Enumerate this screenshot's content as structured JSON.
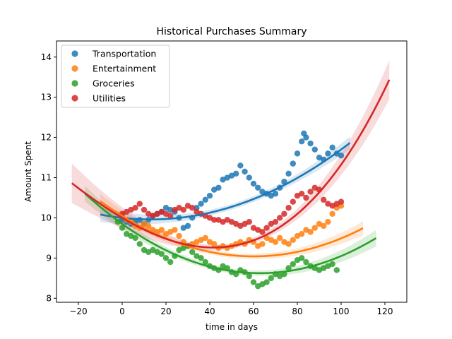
{
  "chart_data": {
    "type": "scatter",
    "title": "Historical Purchases Summary",
    "xlabel": "time in days",
    "ylabel": "Amount Spent",
    "xlim": [
      -30,
      130
    ],
    "ylim": [
      7.9,
      14.4
    ],
    "xticks": [
      -20,
      0,
      20,
      40,
      60,
      80,
      100,
      120
    ],
    "yticks": [
      8,
      9,
      10,
      11,
      12,
      13,
      14
    ],
    "grid": false,
    "legend_position": "top-left",
    "series": [
      {
        "name": "Transportation",
        "color": "#1f77b4",
        "points": [
          [
            0,
            9.95
          ],
          [
            2,
            9.9
          ],
          [
            4,
            9.85
          ],
          [
            6,
            9.9
          ],
          [
            8,
            9.95
          ],
          [
            10,
            9.85
          ],
          [
            12,
            9.95
          ],
          [
            14,
            10.05
          ],
          [
            16,
            10.1
          ],
          [
            18,
            10.15
          ],
          [
            20,
            10.25
          ],
          [
            22,
            10.2
          ],
          [
            24,
            10.15
          ],
          [
            26,
            10.0
          ],
          [
            28,
            9.75
          ],
          [
            30,
            9.8
          ],
          [
            32,
            10.0
          ],
          [
            34,
            10.25
          ],
          [
            36,
            10.35
          ],
          [
            38,
            10.45
          ],
          [
            40,
            10.55
          ],
          [
            42,
            10.7
          ],
          [
            44,
            10.75
          ],
          [
            46,
            10.95
          ],
          [
            48,
            11.0
          ],
          [
            50,
            11.05
          ],
          [
            52,
            11.1
          ],
          [
            54,
            11.3
          ],
          [
            56,
            11.15
          ],
          [
            58,
            11.0
          ],
          [
            60,
            10.85
          ],
          [
            62,
            10.75
          ],
          [
            64,
            10.65
          ],
          [
            66,
            10.6
          ],
          [
            68,
            10.55
          ],
          [
            70,
            10.6
          ],
          [
            72,
            10.75
          ],
          [
            74,
            10.9
          ],
          [
            76,
            11.1
          ],
          [
            78,
            11.35
          ],
          [
            80,
            11.6
          ],
          [
            82,
            11.9
          ],
          [
            83,
            12.1
          ],
          [
            84,
            12.0
          ],
          [
            86,
            11.85
          ],
          [
            88,
            11.7
          ],
          [
            90,
            11.5
          ],
          [
            92,
            11.45
          ],
          [
            94,
            11.6
          ],
          [
            96,
            11.75
          ],
          [
            98,
            11.6
          ],
          [
            100,
            11.55
          ]
        ],
        "fit": {
          "coef": [
            10.0,
            -0.006,
            0.00023
          ],
          "x_range": [
            -10,
            104
          ],
          "band": 0.07
        }
      },
      {
        "name": "Entertainment",
        "color": "#ff7f0e",
        "points": [
          [
            0,
            10.05
          ],
          [
            2,
            9.95
          ],
          [
            4,
            9.9
          ],
          [
            6,
            9.8
          ],
          [
            8,
            9.75
          ],
          [
            10,
            9.85
          ],
          [
            12,
            9.8
          ],
          [
            14,
            9.7
          ],
          [
            16,
            9.65
          ],
          [
            18,
            9.7
          ],
          [
            20,
            9.6
          ],
          [
            22,
            9.65
          ],
          [
            24,
            9.7
          ],
          [
            26,
            9.55
          ],
          [
            28,
            9.4
          ],
          [
            30,
            9.3
          ],
          [
            32,
            9.35
          ],
          [
            34,
            9.4
          ],
          [
            36,
            9.45
          ],
          [
            38,
            9.5
          ],
          [
            40,
            9.4
          ],
          [
            42,
            9.35
          ],
          [
            44,
            9.25
          ],
          [
            46,
            9.3
          ],
          [
            48,
            9.25
          ],
          [
            50,
            9.3
          ],
          [
            52,
            9.35
          ],
          [
            54,
            9.4
          ],
          [
            56,
            9.35
          ],
          [
            58,
            9.45
          ],
          [
            60,
            9.4
          ],
          [
            62,
            9.3
          ],
          [
            64,
            9.35
          ],
          [
            66,
            9.5
          ],
          [
            68,
            9.45
          ],
          [
            70,
            9.4
          ],
          [
            72,
            9.5
          ],
          [
            74,
            9.4
          ],
          [
            76,
            9.35
          ],
          [
            78,
            9.45
          ],
          [
            80,
            9.55
          ],
          [
            82,
            9.6
          ],
          [
            84,
            9.7
          ],
          [
            86,
            9.65
          ],
          [
            88,
            9.75
          ],
          [
            90,
            9.85
          ],
          [
            92,
            9.8
          ],
          [
            94,
            9.9
          ],
          [
            96,
            10.1
          ],
          [
            98,
            10.25
          ],
          [
            100,
            10.3
          ]
        ],
        "fit": {
          "coef": [
            10.05,
            -0.0336,
            0.00028
          ],
          "x_range": [
            -10,
            110
          ],
          "band": 0.06
        }
      },
      {
        "name": "Groceries",
        "color": "#2ca02c",
        "points": [
          [
            -2,
            9.9
          ],
          [
            0,
            9.75
          ],
          [
            2,
            9.6
          ],
          [
            4,
            9.55
          ],
          [
            6,
            9.5
          ],
          [
            8,
            9.35
          ],
          [
            10,
            9.2
          ],
          [
            12,
            9.15
          ],
          [
            14,
            9.2
          ],
          [
            16,
            9.15
          ],
          [
            18,
            9.1
          ],
          [
            20,
            9.0
          ],
          [
            22,
            8.9
          ],
          [
            24,
            9.05
          ],
          [
            26,
            9.2
          ],
          [
            28,
            9.25
          ],
          [
            30,
            9.3
          ],
          [
            32,
            9.15
          ],
          [
            34,
            9.05
          ],
          [
            36,
            9.0
          ],
          [
            38,
            8.9
          ],
          [
            40,
            8.8
          ],
          [
            42,
            8.75
          ],
          [
            44,
            8.7
          ],
          [
            46,
            8.8
          ],
          [
            48,
            8.75
          ],
          [
            50,
            8.65
          ],
          [
            52,
            8.6
          ],
          [
            54,
            8.7
          ],
          [
            56,
            8.65
          ],
          [
            58,
            8.55
          ],
          [
            60,
            8.4
          ],
          [
            62,
            8.3
          ],
          [
            64,
            8.35
          ],
          [
            66,
            8.4
          ],
          [
            68,
            8.5
          ],
          [
            70,
            8.6
          ],
          [
            72,
            8.55
          ],
          [
            74,
            8.6
          ],
          [
            76,
            8.75
          ],
          [
            78,
            8.85
          ],
          [
            80,
            8.95
          ],
          [
            82,
            9.0
          ],
          [
            84,
            8.9
          ],
          [
            86,
            8.8
          ],
          [
            88,
            8.75
          ],
          [
            90,
            8.7
          ],
          [
            92,
            8.75
          ],
          [
            94,
            8.8
          ],
          [
            96,
            8.85
          ],
          [
            98,
            8.7
          ]
        ],
        "fit": {
          "coef": [
            9.85,
            -0.039,
            0.00031
          ],
          "x_range": [
            -17,
            116
          ],
          "band": 0.06
        }
      },
      {
        "name": "Utilities",
        "color": "#d62728",
        "points": [
          [
            0,
            10.1
          ],
          [
            2,
            10.15
          ],
          [
            4,
            10.2
          ],
          [
            6,
            10.25
          ],
          [
            8,
            10.35
          ],
          [
            10,
            10.2
          ],
          [
            12,
            10.1
          ],
          [
            14,
            10.05
          ],
          [
            16,
            10.1
          ],
          [
            18,
            10.15
          ],
          [
            20,
            10.1
          ],
          [
            22,
            10.05
          ],
          [
            24,
            10.2
          ],
          [
            26,
            10.25
          ],
          [
            28,
            10.2
          ],
          [
            30,
            10.3
          ],
          [
            32,
            10.25
          ],
          [
            34,
            10.15
          ],
          [
            36,
            10.1
          ],
          [
            38,
            10.05
          ],
          [
            40,
            10.0
          ],
          [
            42,
            9.95
          ],
          [
            44,
            9.95
          ],
          [
            46,
            9.9
          ],
          [
            48,
            9.95
          ],
          [
            50,
            9.9
          ],
          [
            52,
            9.85
          ],
          [
            54,
            9.8
          ],
          [
            56,
            9.85
          ],
          [
            58,
            9.9
          ],
          [
            60,
            9.75
          ],
          [
            62,
            9.7
          ],
          [
            64,
            9.65
          ],
          [
            66,
            9.75
          ],
          [
            68,
            9.85
          ],
          [
            70,
            9.9
          ],
          [
            72,
            10.0
          ],
          [
            74,
            10.1
          ],
          [
            76,
            10.25
          ],
          [
            78,
            10.4
          ],
          [
            80,
            10.55
          ],
          [
            82,
            10.6
          ],
          [
            84,
            10.5
          ],
          [
            86,
            10.65
          ],
          [
            88,
            10.75
          ],
          [
            90,
            10.7
          ],
          [
            92,
            10.45
          ],
          [
            94,
            10.35
          ],
          [
            96,
            10.3
          ],
          [
            98,
            10.35
          ],
          [
            100,
            10.4
          ]
        ],
        "fit": {
          "coef": [
            10.0,
            -0.0322,
            0.0002714,
            1.83e-06
          ],
          "x_range": [
            -23,
            122
          ],
          "band": 0.06
        }
      }
    ]
  }
}
